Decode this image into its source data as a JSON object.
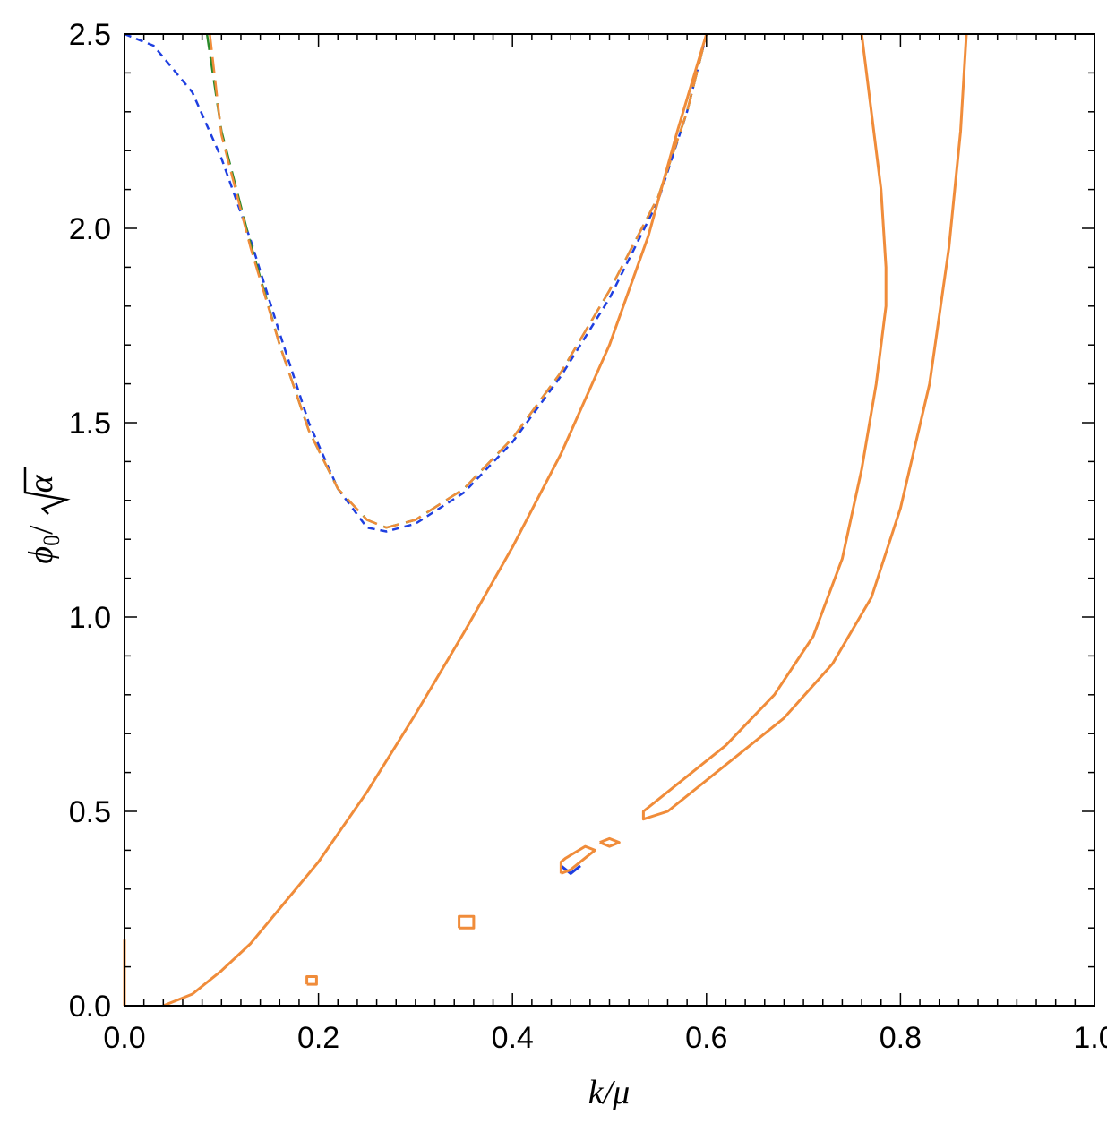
{
  "chart_data": {
    "type": "line",
    "title": "",
    "xlabel": "k/μ",
    "ylabel": "ϕ0/√α",
    "ylabel_parts": {
      "phi": "ϕ",
      "sub": "0",
      "slash": "/",
      "alpha": "α"
    },
    "xlim": [
      0.0,
      1.0
    ],
    "ylim": [
      0.0,
      2.5
    ],
    "x_ticks": [
      {
        "v": 0.0,
        "label": "0.0"
      },
      {
        "v": 0.2,
        "label": "0.2"
      },
      {
        "v": 0.4,
        "label": "0.4"
      },
      {
        "v": 0.6,
        "label": "0.6"
      },
      {
        "v": 0.8,
        "label": "0.8"
      },
      {
        "v": 1.0,
        "label": "1.0"
      }
    ],
    "y_ticks": [
      {
        "v": 0.0,
        "label": "0.0"
      },
      {
        "v": 0.5,
        "label": "0.5"
      },
      {
        "v": 1.0,
        "label": "1.0"
      },
      {
        "v": 1.5,
        "label": "1.5"
      },
      {
        "v": 2.0,
        "label": "2.0"
      },
      {
        "v": 2.5,
        "label": "2.5"
      }
    ],
    "grid": false,
    "legend": "none",
    "colors": {
      "blue": "#1f3fe0",
      "green": "#2a8a2a",
      "orange": "#f08c3a"
    },
    "series": [
      {
        "color": "#1f3fe0",
        "dash": "short",
        "width": 2.5,
        "points": [
          [
            0.0,
            2.5
          ],
          [
            0.03,
            2.47
          ],
          [
            0.07,
            2.35
          ],
          [
            0.1,
            2.18
          ],
          [
            0.13,
            1.97
          ],
          [
            0.16,
            1.73
          ],
          [
            0.19,
            1.5
          ],
          [
            0.22,
            1.33
          ],
          [
            0.25,
            1.23
          ],
          [
            0.27,
            1.22
          ],
          [
            0.3,
            1.24
          ],
          [
            0.35,
            1.32
          ],
          [
            0.4,
            1.45
          ],
          [
            0.45,
            1.62
          ],
          [
            0.5,
            1.82
          ],
          [
            0.55,
            2.07
          ],
          [
            0.58,
            2.3
          ],
          [
            0.6,
            2.5
          ]
        ]
      },
      {
        "color": "#2a8a2a",
        "dash": "long",
        "width": 2.5,
        "points": [
          [
            0.085,
            2.5
          ],
          [
            0.1,
            2.25
          ],
          [
            0.13,
            1.96
          ],
          [
            0.16,
            1.7
          ],
          [
            0.19,
            1.48
          ],
          [
            0.22,
            1.33
          ],
          [
            0.25,
            1.25
          ],
          [
            0.27,
            1.23
          ],
          [
            0.3,
            1.25
          ],
          [
            0.35,
            1.33
          ],
          [
            0.4,
            1.46
          ],
          [
            0.45,
            1.63
          ],
          [
            0.5,
            1.84
          ],
          [
            0.55,
            2.08
          ],
          [
            0.58,
            2.3
          ],
          [
            0.6,
            2.5
          ]
        ]
      },
      {
        "color": "#f08c3a",
        "dash": "long",
        "width": 2.5,
        "points": [
          [
            0.088,
            2.5
          ],
          [
            0.1,
            2.24
          ],
          [
            0.13,
            1.95
          ],
          [
            0.16,
            1.7
          ],
          [
            0.19,
            1.48
          ],
          [
            0.22,
            1.33
          ],
          [
            0.25,
            1.25
          ],
          [
            0.27,
            1.23
          ],
          [
            0.3,
            1.25
          ],
          [
            0.35,
            1.33
          ],
          [
            0.4,
            1.46
          ],
          [
            0.45,
            1.63
          ],
          [
            0.5,
            1.84
          ],
          [
            0.55,
            2.08
          ],
          [
            0.58,
            2.3
          ],
          [
            0.6,
            2.5
          ]
        ]
      },
      {
        "color": "#f08c3a",
        "dash": "solid",
        "width": 3,
        "points": [
          [
            0.04,
            0.0
          ],
          [
            0.07,
            0.03
          ],
          [
            0.1,
            0.09
          ],
          [
            0.13,
            0.16
          ],
          [
            0.16,
            0.25
          ],
          [
            0.2,
            0.37
          ],
          [
            0.25,
            0.55
          ],
          [
            0.3,
            0.75
          ],
          [
            0.35,
            0.96
          ],
          [
            0.4,
            1.18
          ],
          [
            0.45,
            1.42
          ],
          [
            0.5,
            1.7
          ],
          [
            0.54,
            1.98
          ],
          [
            0.57,
            2.25
          ],
          [
            0.6,
            2.5
          ]
        ]
      },
      {
        "color": "#f08c3a",
        "dash": "solid",
        "width": 3,
        "points": [
          [
            0.76,
            2.5
          ],
          [
            0.77,
            2.3
          ],
          [
            0.78,
            2.1
          ],
          [
            0.785,
            1.9
          ],
          [
            0.785,
            1.8
          ],
          [
            0.775,
            1.6
          ],
          [
            0.76,
            1.38
          ],
          [
            0.74,
            1.15
          ],
          [
            0.71,
            0.95
          ],
          [
            0.67,
            0.8
          ],
          [
            0.62,
            0.67
          ],
          [
            0.57,
            0.57
          ],
          [
            0.535,
            0.5
          ],
          [
            0.535,
            0.48
          ],
          [
            0.56,
            0.5
          ],
          [
            0.62,
            0.62
          ],
          [
            0.68,
            0.74
          ],
          [
            0.73,
            0.88
          ],
          [
            0.77,
            1.05
          ],
          [
            0.8,
            1.28
          ],
          [
            0.83,
            1.6
          ],
          [
            0.85,
            1.95
          ],
          [
            0.862,
            2.25
          ],
          [
            0.868,
            2.5
          ]
        ]
      },
      {
        "color": "#f08c3a",
        "dash": "solid",
        "width": 3,
        "points": [
          [
            0.0,
            0.0
          ],
          [
            0.0,
            0.17
          ]
        ]
      },
      {
        "color": "#f08c3a",
        "dash": "solid",
        "width": 3,
        "points": [
          [
            0.188,
            0.055
          ],
          [
            0.198,
            0.055
          ],
          [
            0.198,
            0.075
          ],
          [
            0.188,
            0.075
          ],
          [
            0.188,
            0.055
          ]
        ]
      },
      {
        "color": "#f08c3a",
        "dash": "solid",
        "width": 3,
        "points": [
          [
            0.345,
            0.2
          ],
          [
            0.36,
            0.2
          ],
          [
            0.36,
            0.23
          ],
          [
            0.345,
            0.23
          ],
          [
            0.345,
            0.2
          ]
        ]
      },
      {
        "color": "#1f3fe0",
        "dash": "solid",
        "width": 3,
        "points": [
          [
            0.45,
            0.36
          ],
          [
            0.46,
            0.34
          ],
          [
            0.47,
            0.36
          ]
        ]
      },
      {
        "color": "#f08c3a",
        "dash": "solid",
        "width": 3,
        "points": [
          [
            0.45,
            0.34
          ],
          [
            0.46,
            0.35
          ],
          [
            0.475,
            0.38
          ],
          [
            0.485,
            0.4
          ],
          [
            0.475,
            0.41
          ],
          [
            0.455,
            0.38
          ],
          [
            0.45,
            0.37
          ],
          [
            0.45,
            0.34
          ]
        ]
      },
      {
        "color": "#f08c3a",
        "dash": "solid",
        "width": 3,
        "points": [
          [
            0.49,
            0.42
          ],
          [
            0.5,
            0.41
          ],
          [
            0.51,
            0.42
          ],
          [
            0.5,
            0.43
          ],
          [
            0.49,
            0.42
          ]
        ]
      }
    ]
  }
}
